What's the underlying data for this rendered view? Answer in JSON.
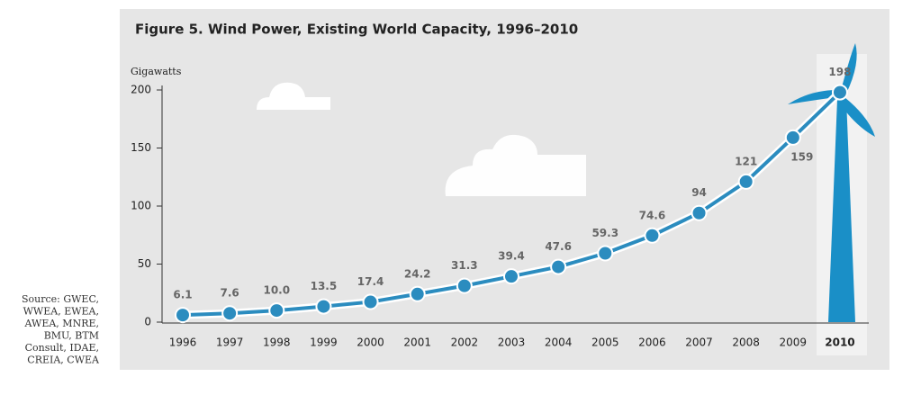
{
  "chart_data": {
    "type": "line",
    "title": "Figure 5. Wind Power, Existing World Capacity, 1996–2010",
    "y_label": "Gigawatts",
    "categories": [
      "1996",
      "1997",
      "1998",
      "1999",
      "2000",
      "2001",
      "2002",
      "2003",
      "2004",
      "2005",
      "2006",
      "2007",
      "2008",
      "2009",
      "2010"
    ],
    "series": [
      {
        "color": "#2b8cbf",
        "values": [
          6.1,
          7.6,
          10,
          13.5,
          17.4,
          24.2,
          31.3,
          39.4,
          47.6,
          59.3,
          74.6,
          94,
          121,
          159,
          198
        ],
        "value_labels": [
          "6.1",
          "7.6",
          "10.0",
          "13.5",
          "17.4",
          "24.2",
          "31.3",
          "39.4",
          "47.6",
          "59.3",
          "74.6",
          "94",
          "121",
          "159",
          "198"
        ]
      }
    ],
    "ylim": [
      0,
      200
    ],
    "yticks": [
      0,
      50,
      100,
      150,
      200
    ],
    "source": [
      "Source: GWEC,",
      "WWEA, EWEA,",
      "AWEA, MNRE,",
      "BMU, BTM",
      "Consult, IDAE,",
      "CREIA, CWEA"
    ]
  }
}
